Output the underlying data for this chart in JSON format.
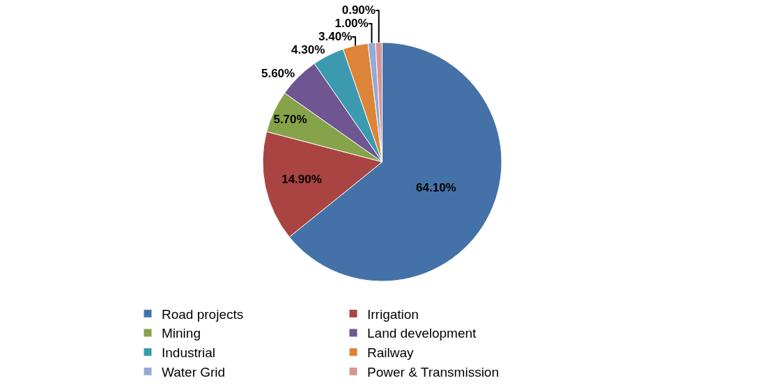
{
  "chart_data": {
    "type": "pie",
    "categories": [
      "Road projects",
      "Irrigation",
      "Mining",
      "Land development",
      "Industrial",
      "Railway",
      "Water Grid",
      "Power & Transmission"
    ],
    "values": [
      64.1,
      14.9,
      5.7,
      5.6,
      4.3,
      3.4,
      1.0,
      0.9
    ],
    "value_labels": [
      "64.10%",
      "14.90%",
      "5.70%",
      "5.60%",
      "4.30%",
      "3.40%",
      "1.00%",
      "0.90%"
    ],
    "colors": [
      "#4472a8",
      "#a94442",
      "#86a34a",
      "#6f5591",
      "#3b9ab0",
      "#dc8437",
      "#94a9d3",
      "#d69594"
    ],
    "legend": "bottom"
  }
}
